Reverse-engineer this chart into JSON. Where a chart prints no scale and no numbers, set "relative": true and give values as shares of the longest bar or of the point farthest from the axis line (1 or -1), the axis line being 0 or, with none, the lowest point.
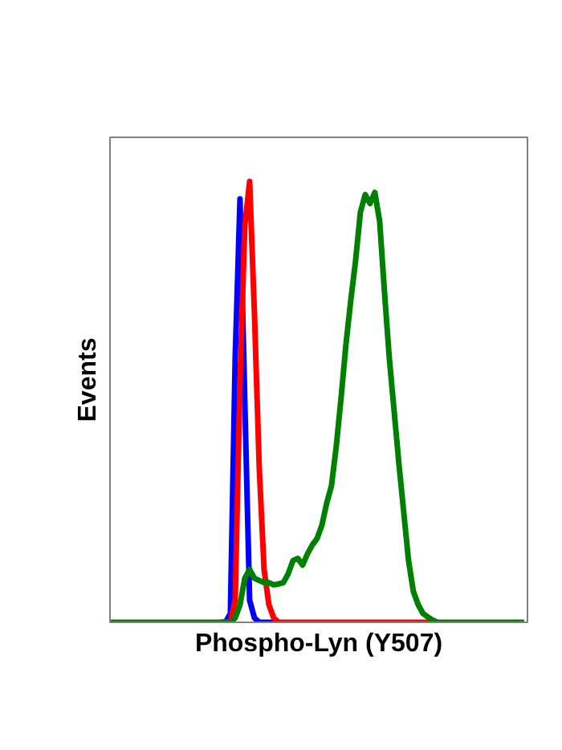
{
  "chart_data": {
    "type": "line",
    "relative": true,
    "xlabel": "Phospho-Lyn (Y507)",
    "ylabel": "Events",
    "categories": [
      null,
      null,
      null,
      null,
      null,
      null,
      null,
      null,
      null,
      null,
      null,
      null,
      null,
      null,
      null,
      null,
      null,
      null,
      null,
      null,
      null,
      null,
      null,
      null,
      null,
      null,
      null,
      null,
      null,
      null,
      null,
      null,
      null,
      null,
      null,
      null,
      null,
      null,
      null,
      null,
      null,
      null,
      null,
      null,
      null,
      null,
      null,
      null,
      null,
      null,
      null,
      null,
      null,
      null,
      null,
      null,
      null,
      null,
      null,
      null,
      null,
      null,
      null,
      null,
      null,
      null,
      null,
      null,
      null,
      null,
      null,
      null,
      null,
      null,
      null,
      null,
      null,
      null,
      null,
      null,
      null,
      null,
      null,
      null,
      null,
      null,
      null
    ],
    "series": [
      {
        "color": "#0000ff",
        "values": [
          null,
          null,
          null,
          null,
          null,
          null,
          null,
          null,
          null,
          null,
          null,
          null,
          null,
          null,
          null,
          null,
          null,
          null,
          null,
          null,
          null,
          null,
          null,
          0,
          0,
          0.02,
          0.6,
          0.96,
          0.5,
          0.05,
          0.01,
          0,
          0,
          0,
          0,
          0,
          null,
          null,
          null,
          null,
          null,
          null,
          null,
          null,
          null,
          null,
          null,
          null,
          null,
          null,
          null,
          null,
          null,
          null,
          null,
          null,
          null,
          null,
          null,
          null,
          null,
          null,
          null,
          null,
          null,
          null,
          null,
          null,
          null,
          null,
          null,
          null,
          null,
          null,
          null,
          null,
          null,
          null,
          null,
          null,
          null,
          null,
          null,
          null,
          null,
          null,
          null
        ]
      },
      {
        "color": "#ff0000",
        "values": [
          null,
          null,
          null,
          null,
          null,
          null,
          null,
          null,
          null,
          null,
          null,
          null,
          null,
          null,
          null,
          null,
          null,
          null,
          null,
          null,
          null,
          null,
          null,
          0,
          0,
          0,
          0.05,
          0.55,
          0.9,
          1,
          0.7,
          0.35,
          0.12,
          0.04,
          0.01,
          0,
          0,
          0,
          0,
          0,
          0,
          0,
          0,
          0,
          0,
          0,
          0,
          0,
          0,
          0,
          0,
          0,
          0,
          0,
          0,
          0,
          0,
          0,
          0,
          0,
          0,
          0,
          0,
          0,
          0,
          0,
          0,
          0,
          0,
          null,
          null,
          null,
          null,
          null,
          null,
          null,
          null,
          null,
          null,
          null,
          null,
          null,
          null,
          null,
          null,
          null,
          null
        ]
      },
      {
        "color": "#008000",
        "values": [
          0,
          0,
          0,
          0,
          0,
          0,
          0,
          0,
          0,
          0,
          0,
          0,
          0,
          0,
          0,
          0,
          0,
          0,
          0,
          0,
          0,
          0,
          0,
          0,
          0,
          0,
          0.01,
          0.04,
          0.1,
          0.12,
          0.1,
          0.095,
          0.09,
          0.09,
          0.085,
          0.087,
          0.09,
          0.11,
          0.14,
          0.145,
          0.13,
          0.155,
          0.175,
          0.19,
          0.22,
          0.27,
          0.31,
          0.4,
          0.51,
          0.63,
          0.73,
          0.82,
          0.93,
          0.97,
          0.95,
          0.975,
          0.91,
          0.75,
          0.6,
          0.48,
          0.36,
          0.25,
          0.14,
          0.07,
          0.04,
          0.02,
          0.012,
          0.005,
          0,
          0,
          0,
          0,
          0,
          0,
          0,
          0,
          0,
          0,
          0,
          0,
          0,
          0,
          0,
          0,
          0,
          0,
          0
        ]
      }
    ]
  }
}
